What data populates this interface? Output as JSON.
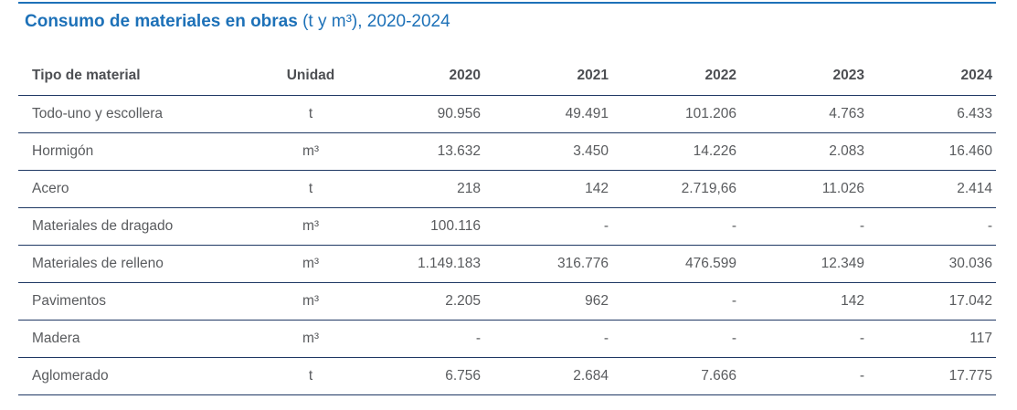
{
  "title": {
    "main": "Consumo de materiales en obras",
    "suffix": " (t y m³), 2020-2024"
  },
  "colors": {
    "title_blue": "#1d71b8",
    "top_rule_blue": "#1d71b8",
    "row_rule_navy": "#1f3864",
    "header_text": "#4d4f53",
    "cell_text": "#595b5e",
    "background": "#ffffff"
  },
  "chart_data": {
    "type": "table",
    "title": "Consumo de materiales en obras (t y m³), 2020-2024",
    "columns": [
      "Tipo de material",
      "Unidad",
      "2020",
      "2021",
      "2022",
      "2023",
      "2024"
    ],
    "rows": [
      {
        "material": "Todo-uno y escollera",
        "unidad": "t",
        "values": [
          "90.956",
          "49.491",
          "101.206",
          "4.763",
          "6.433"
        ]
      },
      {
        "material": "Hormigón",
        "unidad": "m³",
        "values": [
          "13.632",
          "3.450",
          "14.226",
          "2.083",
          "16.460"
        ]
      },
      {
        "material": "Acero",
        "unidad": "t",
        "values": [
          "218",
          "142",
          "2.719,66",
          "11.026",
          "2.414"
        ]
      },
      {
        "material": "Materiales de dragado",
        "unidad": "m³",
        "values": [
          "100.116",
          "-",
          "-",
          "-",
          "-"
        ]
      },
      {
        "material": "Materiales de relleno",
        "unidad": "m³",
        "values": [
          "1.149.183",
          "316.776",
          "476.599",
          "12.349",
          "30.036"
        ]
      },
      {
        "material": "Pavimentos",
        "unidad": "m³",
        "values": [
          "2.205",
          "962",
          "-",
          "142",
          "17.042"
        ]
      },
      {
        "material": "Madera",
        "unidad": "m³",
        "values": [
          "-",
          "-",
          "-",
          "-",
          "117"
        ]
      },
      {
        "material": "Aglomerado",
        "unidad": "t",
        "values": [
          "6.756",
          "2.684",
          "7.666",
          "-",
          "17.775"
        ]
      }
    ]
  }
}
